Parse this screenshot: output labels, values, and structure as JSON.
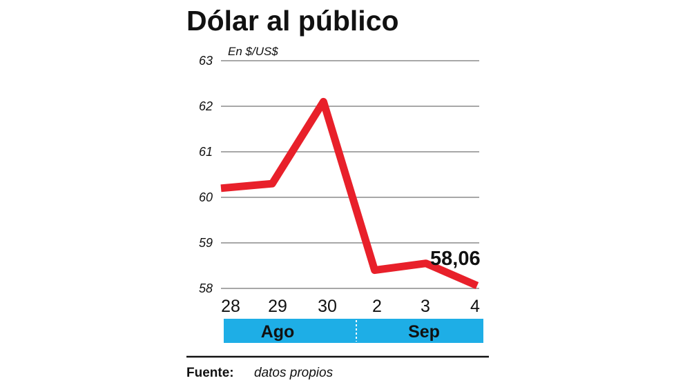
{
  "chart_data": {
    "type": "line",
    "title": "Dólar al público",
    "unit_label": "En $/US$",
    "x": [
      "28",
      "29",
      "30",
      "2",
      "3",
      "4"
    ],
    "months": [
      {
        "label": "Ago",
        "span": [
          "28",
          "30"
        ]
      },
      {
        "label": "Sep",
        "span": [
          "2",
          "4"
        ]
      }
    ],
    "series": [
      {
        "values": [
          60.2,
          60.3,
          62.1,
          58.4,
          58.55,
          58.06
        ]
      }
    ],
    "ylim": [
      58,
      63
    ],
    "yticks": [
      "58",
      "59",
      "60",
      "61",
      "62",
      "63"
    ],
    "grid": true,
    "annotation": {
      "text": "58,06",
      "at": "4"
    },
    "source_label": "Fuente:",
    "source_text": "datos propios"
  },
  "colors": {
    "line": "#e8202a",
    "grid": "#8a8a8a",
    "band": "#1eaee6",
    "text": "#111111"
  }
}
